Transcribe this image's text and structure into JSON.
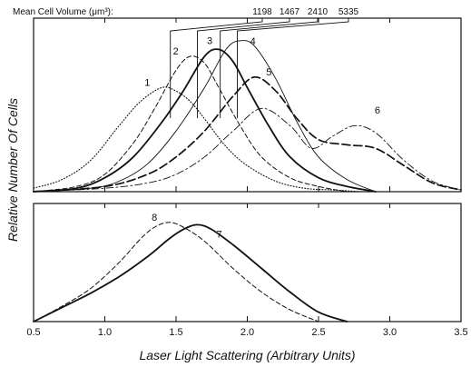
{
  "chart_data": {
    "type": "line",
    "xlabel": "Laser Light Scattering (Arbitrary Units)",
    "ylabel": "Relative Number Of Cells",
    "xlim": [
      0.5,
      3.5
    ],
    "x_ticks": [
      "0.5",
      "1.0",
      "1.5",
      "2.0",
      "2.5",
      "3.0",
      "3.5"
    ],
    "x_tick_values": [
      0.5,
      1.0,
      1.5,
      2.0,
      2.5,
      3.0,
      3.5
    ],
    "grid": false,
    "top_annotation": {
      "title": "Mean Cell Volume (μm³):",
      "volumes": [
        "1198",
        "1467",
        "2410",
        "5335"
      ],
      "positions": [
        1.46,
        1.65,
        1.81,
        1.93
      ]
    },
    "panels": [
      {
        "name": "top",
        "ylim": [
          0,
          1
        ],
        "series": [
          {
            "label": "1",
            "style": "dotted",
            "x": [
              0.5,
              0.7,
              0.9,
              1.1,
              1.25,
              1.4,
              1.5,
              1.6,
              1.7,
              1.85,
              2.0,
              2.2,
              2.4,
              2.6,
              2.8
            ],
            "y": [
              0.02,
              0.07,
              0.18,
              0.38,
              0.52,
              0.6,
              0.58,
              0.52,
              0.42,
              0.26,
              0.15,
              0.06,
              0.02,
              0.01,
              0.0
            ]
          },
          {
            "label": "2",
            "style": "dashed",
            "x": [
              0.5,
              0.8,
              1.0,
              1.2,
              1.35,
              1.5,
              1.6,
              1.7,
              1.8,
              1.95,
              2.1,
              2.3,
              2.5,
              2.7
            ],
            "y": [
              0.0,
              0.03,
              0.1,
              0.28,
              0.48,
              0.7,
              0.78,
              0.74,
              0.6,
              0.38,
              0.2,
              0.08,
              0.03,
              0.0
            ]
          },
          {
            "label": "3",
            "style": "solid",
            "x": [
              0.5,
              0.8,
              1.0,
              1.2,
              1.4,
              1.55,
              1.7,
              1.8,
              1.9,
              2.0,
              2.15,
              2.3,
              2.5,
              2.7,
              2.9
            ],
            "y": [
              0.0,
              0.02,
              0.08,
              0.2,
              0.4,
              0.58,
              0.78,
              0.82,
              0.75,
              0.6,
              0.38,
              0.2,
              0.08,
              0.03,
              0.0
            ]
          },
          {
            "label": "4",
            "style": "thin-solid",
            "x": [
              0.5,
              0.9,
              1.1,
              1.3,
              1.5,
              1.7,
              1.85,
              1.95,
              2.05,
              2.2,
              2.35,
              2.5,
              2.7,
              2.9
            ],
            "y": [
              0.0,
              0.02,
              0.06,
              0.16,
              0.35,
              0.6,
              0.82,
              0.87,
              0.84,
              0.65,
              0.4,
              0.2,
              0.07,
              0.0
            ]
          },
          {
            "label": "5",
            "style": "long-dashed",
            "x": [
              0.5,
              1.0,
              1.3,
              1.5,
              1.7,
              1.9,
              2.05,
              2.2,
              2.35,
              2.5,
              2.7,
              2.9,
              3.1,
              3.3,
              3.5
            ],
            "y": [
              0.0,
              0.03,
              0.1,
              0.2,
              0.35,
              0.55,
              0.66,
              0.58,
              0.42,
              0.3,
              0.27,
              0.25,
              0.15,
              0.05,
              0.01
            ]
          },
          {
            "label": "6",
            "style": "dash-dot",
            "x": [
              0.5,
              1.0,
              1.3,
              1.5,
              1.7,
              1.9,
              2.1,
              2.3,
              2.45,
              2.6,
              2.75,
              2.9,
              3.1,
              3.3,
              3.5
            ],
            "y": [
              0.0,
              0.02,
              0.05,
              0.1,
              0.2,
              0.35,
              0.48,
              0.38,
              0.25,
              0.32,
              0.38,
              0.34,
              0.18,
              0.06,
              0.01
            ]
          }
        ]
      },
      {
        "name": "bottom",
        "ylim": [
          0,
          1
        ],
        "series": [
          {
            "label": "7",
            "style": "solid",
            "x": [
              0.5,
              0.7,
              0.9,
              1.1,
              1.3,
              1.45,
              1.55,
              1.65,
              1.75,
              1.9,
              2.1,
              2.3,
              2.5,
              2.7
            ],
            "y": [
              0.0,
              0.12,
              0.24,
              0.38,
              0.55,
              0.7,
              0.78,
              0.82,
              0.78,
              0.65,
              0.45,
              0.25,
              0.08,
              0.0
            ]
          },
          {
            "label": "8",
            "style": "dashed",
            "x": [
              0.5,
              0.7,
              0.9,
              1.1,
              1.25,
              1.35,
              1.45,
              1.55,
              1.7,
              1.9,
              2.1,
              2.3,
              2.5
            ],
            "y": [
              0.0,
              0.13,
              0.28,
              0.5,
              0.7,
              0.8,
              0.84,
              0.8,
              0.68,
              0.45,
              0.25,
              0.1,
              0.0
            ]
          }
        ]
      }
    ]
  }
}
